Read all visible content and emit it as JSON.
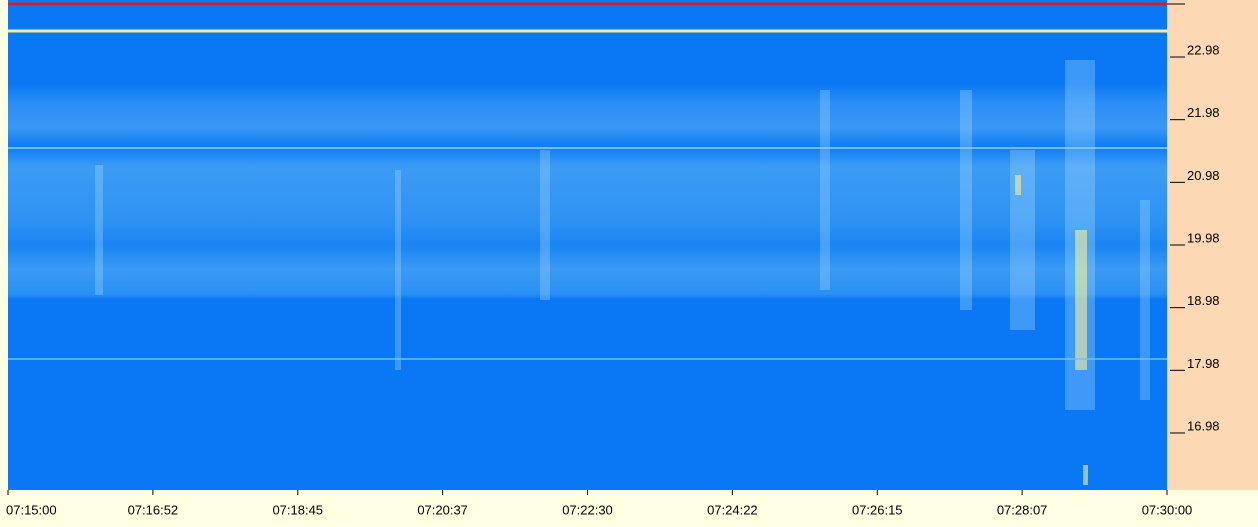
{
  "chart_data": {
    "type": "spectrogram",
    "categories": [
      "07:15:00",
      "07:16:52",
      "07:18:45",
      "07:20:37",
      "07:22:30",
      "07:24:22",
      "07:26:15",
      "07:28:07",
      "07:30:00"
    ],
    "ylim": [
      16.07,
      23.89
    ],
    "yticks": [
      16.98,
      17.98,
      18.98,
      19.98,
      20.98,
      21.98,
      22.98
    ]
  }
}
